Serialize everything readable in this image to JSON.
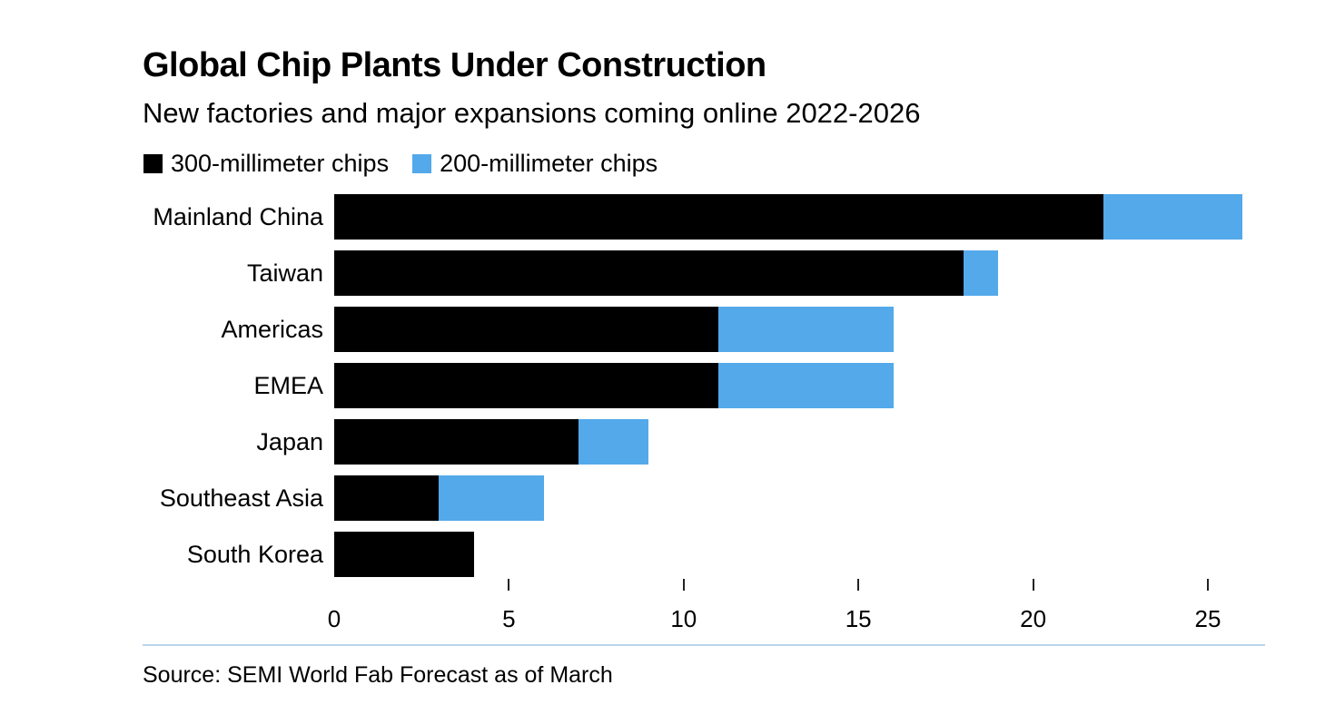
{
  "header": {
    "title": "Global Chip Plants Under Construction",
    "subtitle": "New factories and major expansions coming online 2022-2026"
  },
  "legend": [
    {
      "key": "300mm",
      "label": "300-millimeter chips",
      "color": "#000000"
    },
    {
      "key": "200mm",
      "label": "200-millimeter chips",
      "color": "#53A9EA"
    }
  ],
  "chart_data": {
    "type": "bar",
    "orientation": "horizontal",
    "stacked": true,
    "title": "Global Chip Plants Under Construction",
    "subtitle": "New factories and major expansions coming online 2022-2026",
    "categories": [
      "Mainland China",
      "Taiwan",
      "Americas",
      "EMEA",
      "Japan",
      "Southeast Asia",
      "South Korea"
    ],
    "series": [
      {
        "key": "300mm",
        "name": "300-millimeter chips",
        "color": "#000000",
        "values": [
          22,
          18,
          11,
          11,
          7,
          3,
          4
        ]
      },
      {
        "key": "200mm",
        "name": "200-millimeter chips",
        "color": "#53A9EA",
        "values": [
          4,
          1,
          5,
          5,
          2,
          3,
          0
        ]
      }
    ],
    "totals": [
      26,
      19,
      16,
      16,
      9,
      6,
      4
    ],
    "xlabel": "",
    "ylabel": "",
    "x_ticks": [
      0,
      5,
      10,
      15,
      20,
      25
    ],
    "xlim": [
      0,
      26.6
    ],
    "grid": false,
    "legend_position": "top"
  },
  "footer": {
    "source": "Source: SEMI World Fab Forecast as of March"
  },
  "colors": {
    "bar_black": "#000000",
    "bar_blue": "#53A9EA",
    "divider": "#B9D4EB",
    "text": "#000000",
    "background": "#FFFFFF"
  }
}
